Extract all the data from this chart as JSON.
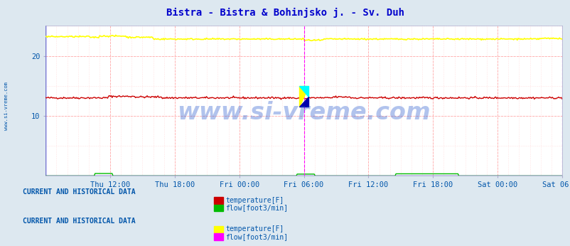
{
  "title": "Bistra - Bistra & Bohinjsko j. - Sv. Duh",
  "title_color": "#0000cc",
  "background_color": "#dde8f0",
  "plot_bg_color": "#ffffff",
  "x_ticks": [
    "Thu 12:00",
    "Thu 18:00",
    "Fri 00:00",
    "Fri 06:00",
    "Fri 12:00",
    "Fri 18:00",
    "Sat 00:00",
    "Sat 06:00"
  ],
  "ylim": [
    0,
    25
  ],
  "yticks": [
    10,
    20
  ],
  "grid_color": "#ffaaaa",
  "watermark": "www.si-vreme.com",
  "watermark_color": "#2255cc",
  "watermark_alpha": 0.35,
  "site1_temp_color": "#cc0000",
  "site1_flow_color": "#00bb00",
  "site2_temp_color": "#ffff00",
  "site2_flow_color": "#ff00ff",
  "cursor_color": "#ff00ff",
  "site1_temp_value": 13.0,
  "site2_temp_value": 22.8,
  "n_points": 576,
  "legend1_title": "CURRENT AND HISTORICAL DATA",
  "legend2_title": "CURRENT AND HISTORICAL DATA",
  "legend_title_color": "#0055aa",
  "legend_text_color": "#0055aa",
  "tick_color": "#0055aa",
  "left_label_color": "#0055aa"
}
